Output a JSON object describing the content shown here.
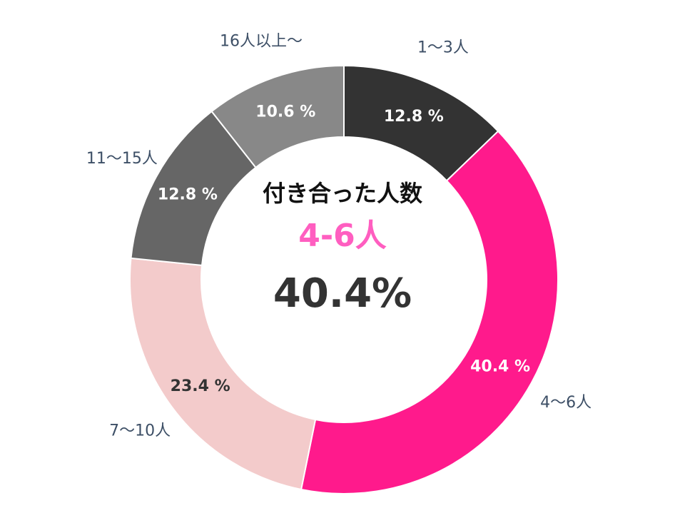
{
  "chart_data": {
    "type": "pie",
    "variant": "donut",
    "center": {
      "title": "付き合った人数",
      "highlight": "4-6人",
      "percent": "40.4%",
      "highlight_color": "#ff5ec0"
    },
    "slices": [
      {
        "category": "1～3人",
        "value": 12.8,
        "label": "12.8 %",
        "color": "#333333",
        "label_color": "#ffffff"
      },
      {
        "category": "4～6人",
        "value": 40.4,
        "label": "40.4 %",
        "color": "#ff1a8c",
        "label_color": "#ffffff"
      },
      {
        "category": "7～10人",
        "value": 23.4,
        "label": "23.4 %",
        "color": "#f3cbcb",
        "label_color": "#333333"
      },
      {
        "category": "11～15人",
        "value": 12.8,
        "label": "12.8 %",
        "color": "#666666",
        "label_color": "#ffffff"
      },
      {
        "category": "16人以上～",
        "value": 10.6,
        "label": "10.6 %",
        "color": "#888888",
        "label_color": "#ffffff"
      }
    ]
  }
}
